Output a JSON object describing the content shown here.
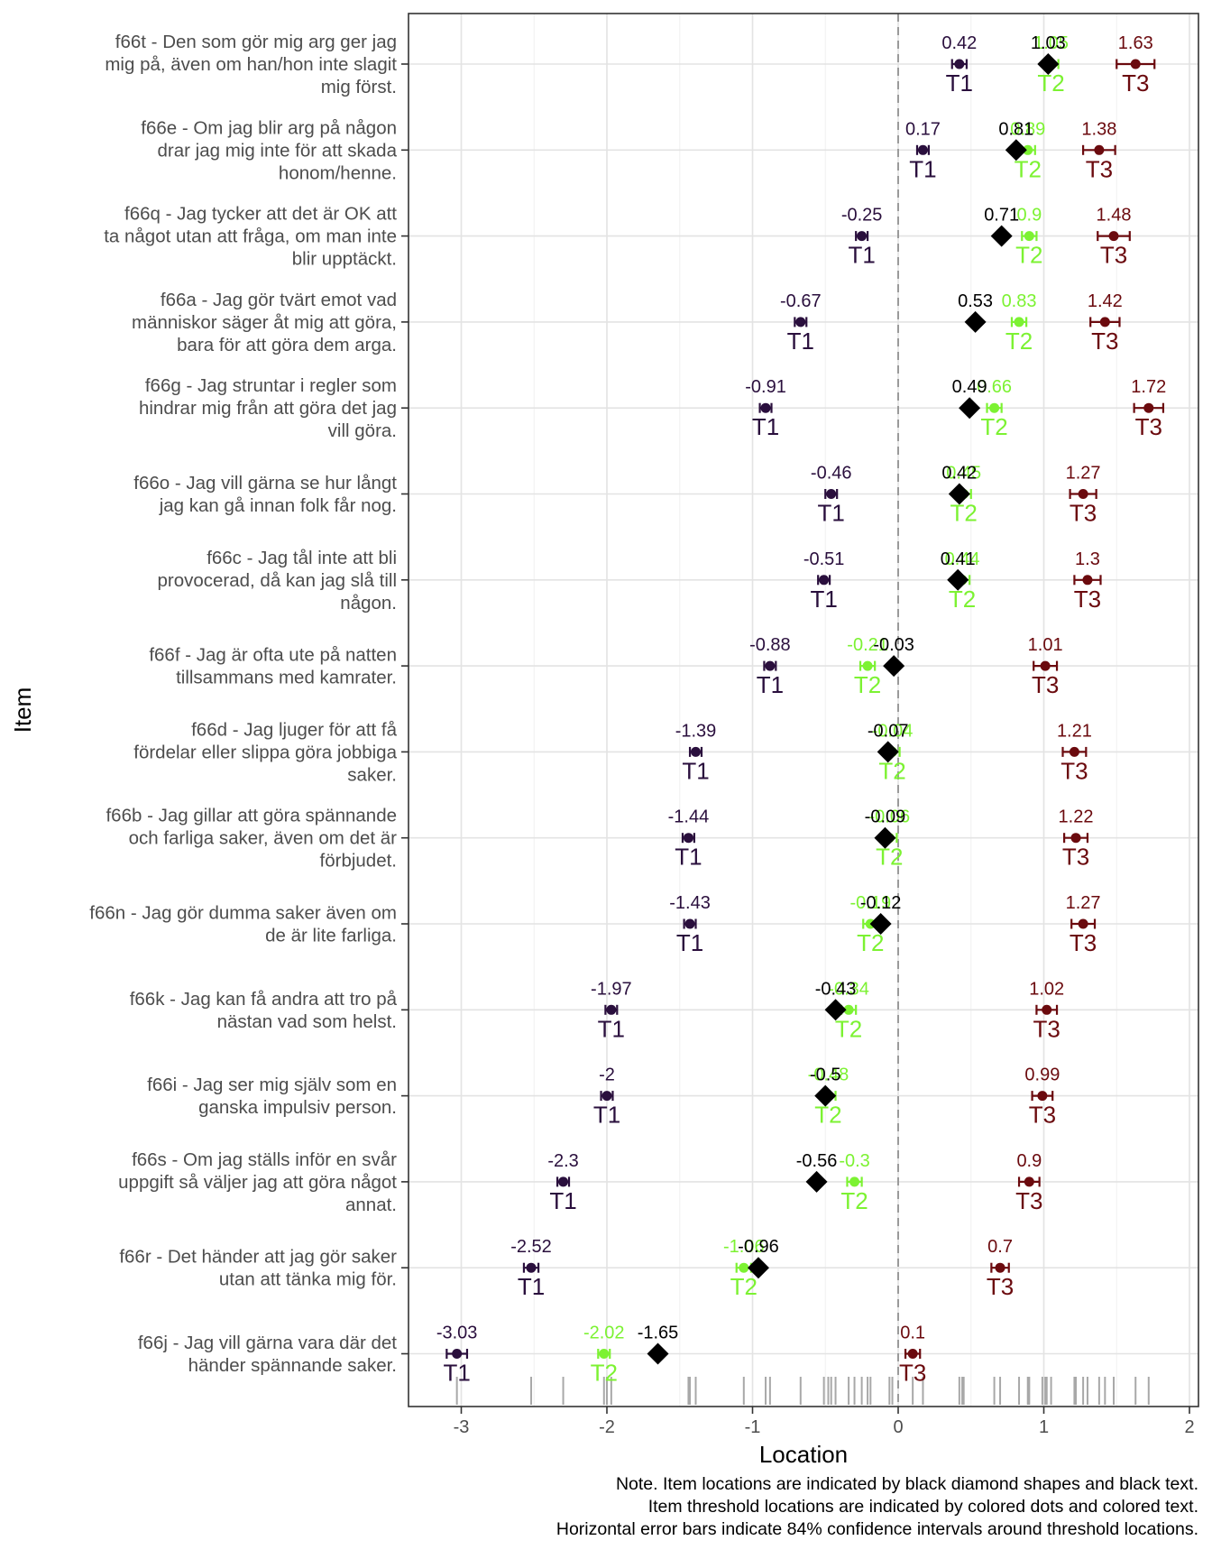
{
  "chart_data": {
    "type": "scatter",
    "title": "",
    "xlabel": "Location",
    "ylabel": "Item",
    "xlim": [
      -3.35,
      2.05
    ],
    "xticks": [
      -3,
      -2,
      -1,
      0,
      1,
      2
    ],
    "grid": true,
    "reference_line_x": 0,
    "threshold_labels": [
      "T1",
      "T2",
      "T3"
    ],
    "threshold_colors": [
      "#2a0f3d",
      "#7cf232",
      "#6b0a0e"
    ],
    "item_color": "#000000",
    "items": [
      {
        "label": [
          "f66t - Den som gör mig arg ger jag",
          "mig på, även om han/hon inte slagit",
          "mig först."
        ],
        "location": 1.03,
        "location_label": "1.03",
        "thresholds": [
          0.42,
          1.05,
          1.63
        ],
        "threshold_labels": [
          "0.42",
          "1.05",
          "1.63"
        ],
        "ci": [
          0.05,
          0.05,
          0.13
        ]
      },
      {
        "label": [
          "f66e - Om jag blir arg på någon",
          "drar jag mig inte för att skada",
          "honom/henne."
        ],
        "location": 0.81,
        "location_label": "0.81",
        "thresholds": [
          0.17,
          0.89,
          1.38
        ],
        "threshold_labels": [
          "0.17",
          "0.89",
          "1.38"
        ],
        "ci": [
          0.04,
          0.05,
          0.11
        ]
      },
      {
        "label": [
          "f66q - Jag tycker att det är OK att",
          "ta något utan att fråga, om man inte",
          "blir upptäckt."
        ],
        "location": 0.71,
        "location_label": "0.71",
        "thresholds": [
          -0.25,
          0.9,
          1.48
        ],
        "threshold_labels": [
          "-0.25",
          "0.9",
          "1.48"
        ],
        "ci": [
          0.04,
          0.05,
          0.11
        ]
      },
      {
        "label": [
          "f66a - Jag gör tvärt emot vad",
          "människor säger åt mig att göra,",
          "bara för att göra dem arga."
        ],
        "location": 0.53,
        "location_label": "0.53",
        "thresholds": [
          -0.67,
          0.83,
          1.42
        ],
        "threshold_labels": [
          "-0.67",
          "0.83",
          "1.42"
        ],
        "ci": [
          0.04,
          0.05,
          0.1
        ]
      },
      {
        "label": [
          "f66g - Jag struntar i regler som",
          "hindrar mig från att göra det jag",
          "vill göra."
        ],
        "location": 0.49,
        "location_label": "0.49",
        "thresholds": [
          -0.91,
          0.66,
          1.72
        ],
        "threshold_labels": [
          "-0.91",
          "0.66",
          "1.72"
        ],
        "ci": [
          0.04,
          0.05,
          0.1
        ]
      },
      {
        "label": [
          "f66o - Jag vill gärna se hur långt",
          "jag kan gå innan folk får nog."
        ],
        "location": 0.42,
        "location_label": "0.42",
        "thresholds": [
          -0.46,
          0.45,
          1.27
        ],
        "threshold_labels": [
          "-0.46",
          "0.45",
          "1.27"
        ],
        "ci": [
          0.04,
          0.05,
          0.09
        ]
      },
      {
        "label": [
          "f66c - Jag tål inte att bli",
          "provocerad, då kan jag slå till",
          "någon."
        ],
        "location": 0.41,
        "location_label": "0.41",
        "thresholds": [
          -0.51,
          0.44,
          1.3
        ],
        "threshold_labels": [
          "-0.51",
          "0.44",
          "1.3"
        ],
        "ci": [
          0.04,
          0.05,
          0.09
        ]
      },
      {
        "label": [
          "f66f - Jag är ofta ute på natten",
          "tillsammans med kamrater."
        ],
        "location": -0.03,
        "location_label": "-0.03",
        "thresholds": [
          -0.88,
          -0.21,
          1.01
        ],
        "threshold_labels": [
          "-0.88",
          "-0.21",
          "1.01"
        ],
        "ci": [
          0.04,
          0.05,
          0.08
        ]
      },
      {
        "label": [
          "f66d - Jag ljuger för att få",
          "fördelar eller slippa göra jobbiga",
          "saker."
        ],
        "location": -0.07,
        "location_label": "-0.07",
        "thresholds": [
          -1.39,
          -0.04,
          1.21
        ],
        "threshold_labels": [
          "-1.39",
          "-0.04",
          "1.21"
        ],
        "ci": [
          0.04,
          0.05,
          0.08
        ]
      },
      {
        "label": [
          "f66b - Jag gillar att göra spännande",
          "och farliga saker, även om det är",
          "förbjudet."
        ],
        "location": -0.09,
        "location_label": "-0.09",
        "thresholds": [
          -1.44,
          -0.06,
          1.22
        ],
        "threshold_labels": [
          "-1.44",
          "-0.06",
          "1.22"
        ],
        "ci": [
          0.04,
          0.05,
          0.08
        ]
      },
      {
        "label": [
          "f66n - Jag gör dumma saker även om",
          "de är lite farliga."
        ],
        "location": -0.12,
        "location_label": "-0.12",
        "thresholds": [
          -1.43,
          -0.19,
          1.27
        ],
        "threshold_labels": [
          "-1.43",
          "-0.19",
          "1.27"
        ],
        "ci": [
          0.04,
          0.05,
          0.08
        ]
      },
      {
        "label": [
          "f66k - Jag kan få andra att tro på",
          "nästan vad som helst."
        ],
        "location": -0.43,
        "location_label": "-0.43",
        "thresholds": [
          -1.97,
          -0.34,
          1.02
        ],
        "threshold_labels": [
          "-1.97",
          "-0.34",
          "1.02"
        ],
        "ci": [
          0.04,
          0.05,
          0.07
        ]
      },
      {
        "label": [
          "f66i - Jag ser mig själv som en",
          "ganska impulsiv person."
        ],
        "location": -0.5,
        "location_label": "-0.5",
        "thresholds": [
          -2.0,
          -0.48,
          0.99
        ],
        "threshold_labels": [
          "-2",
          "-0.48",
          "0.99"
        ],
        "ci": [
          0.04,
          0.05,
          0.07
        ]
      },
      {
        "label": [
          "f66s - Om jag ställs inför en svår",
          "uppgift så väljer jag att göra något",
          "annat."
        ],
        "location": -0.56,
        "location_label": "-0.56",
        "thresholds": [
          -2.3,
          -0.3,
          0.9
        ],
        "threshold_labels": [
          "-2.3",
          "-0.3",
          "0.9"
        ],
        "ci": [
          0.04,
          0.05,
          0.07
        ]
      },
      {
        "label": [
          "f66r - Det händer att jag gör saker",
          "utan att tänka mig för."
        ],
        "location": -0.96,
        "location_label": "-0.96",
        "thresholds": [
          -2.52,
          -1.06,
          0.7
        ],
        "threshold_labels": [
          "-2.52",
          "-1.06",
          "0.7"
        ],
        "ci": [
          0.05,
          0.05,
          0.06
        ]
      },
      {
        "label": [
          "f66j - Jag vill gärna vara där det",
          "händer spännande saker."
        ],
        "location": -1.65,
        "location_label": "-1.65",
        "thresholds": [
          -3.03,
          -2.02,
          0.1
        ],
        "threshold_labels": [
          "-3.03",
          "-2.02",
          "0.1"
        ],
        "ci": [
          0.07,
          0.04,
          0.05
        ]
      }
    ],
    "rug": [
      -3.03,
      -2.52,
      -2.3,
      -2.02,
      -2.0,
      -1.97,
      -1.44,
      -1.43,
      -1.39,
      -1.06,
      -0.91,
      -0.88,
      -0.67,
      -0.51,
      -0.48,
      -0.46,
      -0.43,
      -0.34,
      -0.3,
      -0.25,
      -0.21,
      -0.19,
      -0.06,
      -0.04,
      0.1,
      0.17,
      0.42,
      0.44,
      0.45,
      0.66,
      0.7,
      0.83,
      0.89,
      0.9,
      0.99,
      1.01,
      1.02,
      1.05,
      1.21,
      1.22,
      1.27,
      1.3,
      1.38,
      1.42,
      1.48,
      1.63,
      1.72
    ]
  },
  "notes": [
    "Note. Item locations are indicated by black diamond shapes and black text.",
    "Item threshold locations are indicated by colored dots and colored text.",
    "Horizontal error bars indicate 84% confidence intervals around threshold locations."
  ]
}
